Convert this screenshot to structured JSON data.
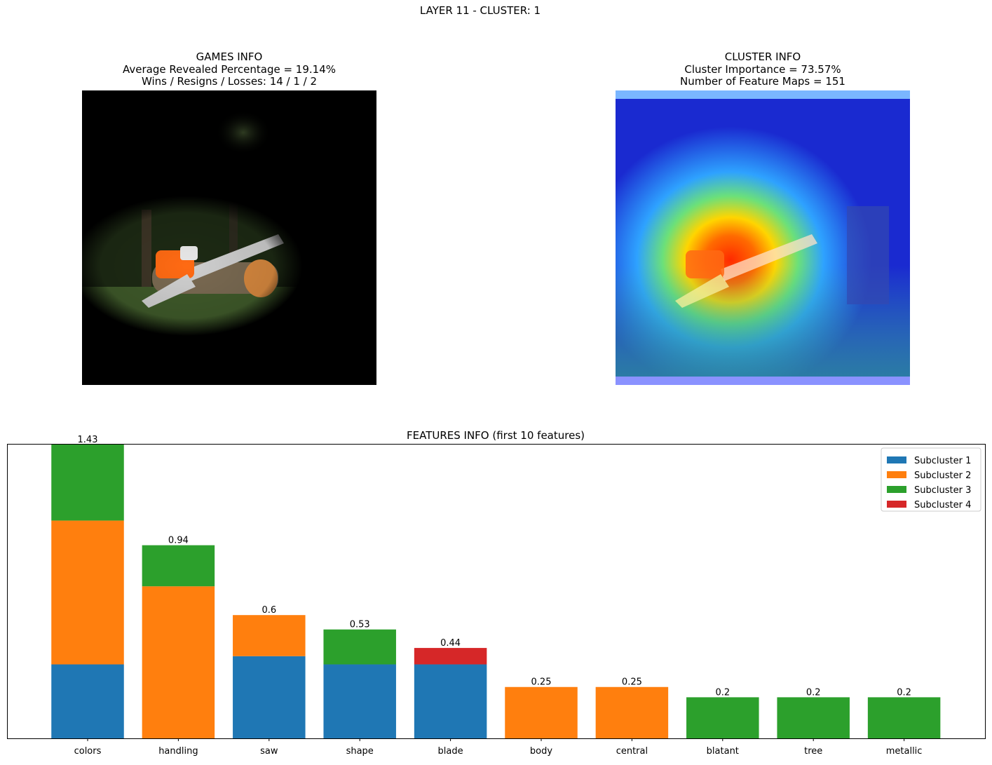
{
  "suptitle": "LAYER 11 - CLUSTER: 1",
  "games_info": {
    "title": "GAMES INFO",
    "line1": "Average Revealed Percentage = 19.14%",
    "line2": "Wins / Resigns / Losses: 14 / 1 / 2"
  },
  "cluster_info": {
    "title": "CLUSTER INFO",
    "line1": "Cluster Importance = 73.57%",
    "line2": "Number of Feature Maps = 151"
  },
  "left_image": {
    "kind": "masked photo of an orange chainsaw on a log, mostly black"
  },
  "right_image": {
    "kind": "heatmap overlay of chainsaw photo"
  },
  "chart_data": {
    "type": "bar",
    "stacked": true,
    "title": "FEATURES INFO (first 10 features)",
    "categories": [
      "colors",
      "handling",
      "saw",
      "shape",
      "blade",
      "body",
      "central",
      "blatant",
      "tree",
      "metallic"
    ],
    "series": [
      {
        "name": "Subcluster 1",
        "color": "#1f77b4",
        "values": [
          0.36,
          0,
          0.4,
          0.36,
          0.36,
          0,
          0,
          0,
          0,
          0
        ]
      },
      {
        "name": "Subcluster 2",
        "color": "#ff7f0e",
        "values": [
          0.7,
          0.74,
          0.2,
          0,
          0,
          0.25,
          0.25,
          0,
          0,
          0
        ]
      },
      {
        "name": "Subcluster 3",
        "color": "#2ca02c",
        "values": [
          0.37,
          0.2,
          0,
          0.17,
          0,
          0,
          0,
          0.2,
          0.2,
          0.2
        ]
      },
      {
        "name": "Subcluster 4",
        "color": "#d62728",
        "values": [
          0,
          0,
          0,
          0,
          0.08,
          0,
          0,
          0,
          0,
          0
        ]
      }
    ],
    "totals": [
      "1.43",
      "0.94",
      "0.6",
      "0.53",
      "0.44",
      "0.25",
      "0.25",
      "0.2",
      "0.2",
      "0.2"
    ],
    "ylim": [
      0,
      1.43
    ],
    "legend_position": "top-right",
    "grid": false,
    "y_ticks_visible": false
  }
}
